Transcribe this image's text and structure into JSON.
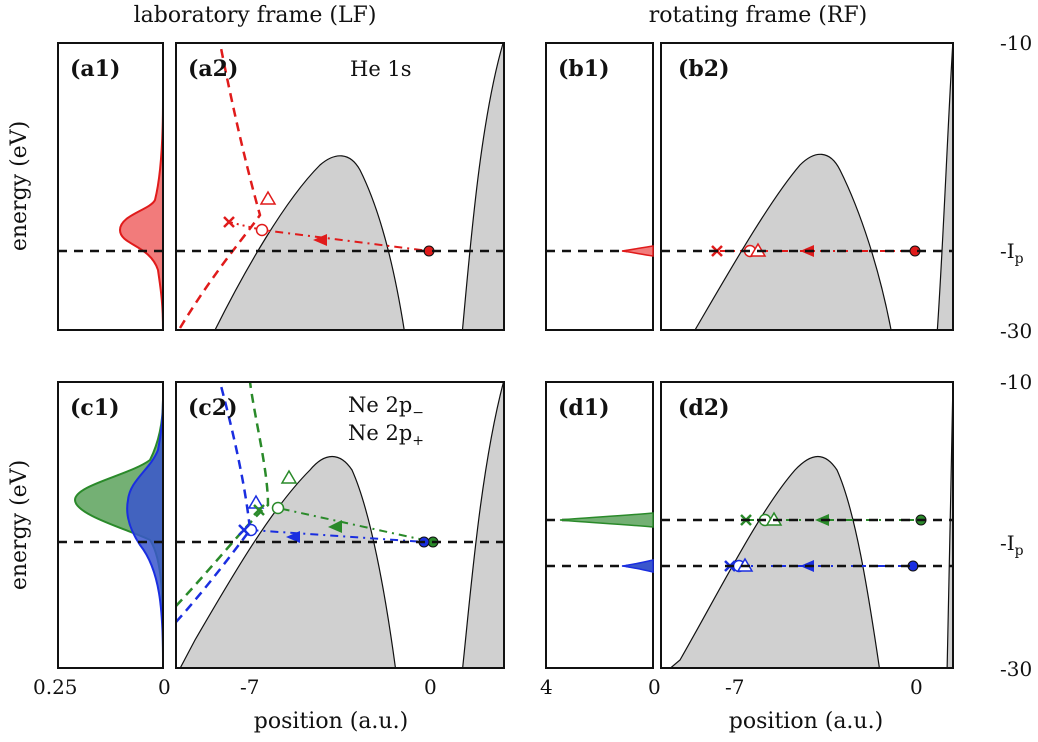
{
  "headers": {
    "lf": "laboratory frame (LF)",
    "rf": "rotating frame (RF)"
  },
  "axes": {
    "ylabel": "energy (eV)",
    "xlabel": "position (a.u.)",
    "y_tick_top": "-10",
    "y_tick_bottom": "-30",
    "y_tick_ip": "-I",
    "y_tick_ip_sub": "p",
    "x_ticks_pos": [
      "-7",
      "0"
    ],
    "x_ticks_dist_lf": [
      "0.25",
      "0"
    ],
    "x_ticks_dist_rf": [
      "4",
      "0"
    ]
  },
  "panel_tags": {
    "a1": "(a1)",
    "a2": "(a2)",
    "b1": "(b1)",
    "b2": "(b2)",
    "c1": "(c1)",
    "c2": "(c2)",
    "d1": "(d1)",
    "d2": "(d2)"
  },
  "legend": {
    "he": "He 1s",
    "ne_minus": "Ne 2p",
    "ne_minus_sub": "−",
    "ne_plus": "Ne 2p",
    "ne_plus_sub": "+"
  },
  "colors": {
    "he": "#e01b1b",
    "ne_minus": "#2a8a2a",
    "ne_plus": "#1a2ee0",
    "barrier": "#d0d0d0"
  },
  "chart_data": [
    {
      "panel": "a1",
      "type": "area",
      "x_axis": "probability",
      "xlim": [
        0.25,
        0
      ],
      "ylim": [
        -30,
        -10
      ],
      "series": [
        {
          "name": "He 1s",
          "peak_x": 0.1,
          "peak_y": -17.5,
          "width": 2.2
        }
      ]
    },
    {
      "panel": "a2",
      "type": "line",
      "xlim": [
        -9.5,
        2.5
      ],
      "ylim": [
        -30,
        -10
      ],
      "ip_y": -21,
      "trajectory": {
        "start": [
          0,
          -21
        ],
        "x_mark": [
          -8.6,
          -19.9
        ],
        "circle": [
          -6.5,
          -20.5
        ],
        "triangle": [
          -6.2,
          -18.3
        ]
      },
      "asymptote": {
        "from": [
          -9.3,
          -29.8
        ],
        "via": [
          -6.8,
          -20.6
        ],
        "to": [
          -7.8,
          -10.3
        ]
      }
    },
    {
      "panel": "b1",
      "type": "area",
      "xlim": [
        4,
        0
      ],
      "ylim": [
        -30,
        -10
      ],
      "series": [
        {
          "name": "He 1s",
          "peak_x": 2,
          "peak_y": -21
        }
      ]
    },
    {
      "panel": "b2",
      "type": "line",
      "xlim": [
        -9.5,
        2.5
      ],
      "ylim": [
        -30,
        -10
      ],
      "ip_y": -21,
      "trajectory": {
        "start": [
          0,
          -21
        ],
        "x_mark": [
          -8,
          -21
        ],
        "circle": [
          -6.4,
          -21
        ],
        "triangle": [
          -6.1,
          -21
        ]
      }
    },
    {
      "panel": "c1",
      "type": "area",
      "xlim": [
        0.25,
        0
      ],
      "ylim": [
        -30,
        -10
      ],
      "series": [
        {
          "name": "Ne 2p−",
          "peak_x": 0.2,
          "peak_y": -19.2,
          "width": 2.3
        },
        {
          "name": "Ne 2p+",
          "peak_x": 0.13,
          "peak_y": -20.2,
          "width": 3.0
        }
      ]
    },
    {
      "panel": "c2",
      "type": "line",
      "xlim": [
        -9.5,
        2.5
      ],
      "ylim": [
        -30,
        -10
      ],
      "ip_y": -21,
      "trajectories": [
        {
          "name": "Ne 2p−",
          "start": [
            0.2,
            -21
          ],
          "x_mark": [
            -7.2,
            -19.6
          ],
          "circle": [
            -6.2,
            -19.5
          ],
          "triangle": [
            -5.7,
            -17.9
          ]
        },
        {
          "name": "Ne 2p+",
          "start": [
            -0.2,
            -21
          ],
          "x_mark": [
            -7.5,
            -20.6
          ],
          "circle": [
            -7.2,
            -20.6
          ],
          "triangle": [
            -7.0,
            -19.3
          ]
        }
      ]
    },
    {
      "panel": "d1",
      "type": "area",
      "xlim": [
        4,
        0
      ],
      "ylim": [
        -30,
        -10
      ],
      "series": [
        {
          "name": "Ne 2p−",
          "peak_x": 3.7,
          "peak_y": -19
        },
        {
          "name": "Ne 2p+",
          "peak_x": 1.2,
          "peak_y": -22.7
        }
      ]
    },
    {
      "panel": "d2",
      "type": "line",
      "xlim": [
        -9.5,
        2.5
      ],
      "ylim": [
        -30,
        -10
      ],
      "ip_levels": [
        -19,
        -22.7
      ],
      "trajectories": [
        {
          "name": "Ne 2p−",
          "start": [
            0.2,
            -19
          ],
          "x_mark": [
            -8,
            -19
          ],
          "circle": [
            -6.3,
            -19
          ],
          "triangle": [
            -5.9,
            -19
          ]
        },
        {
          "name": "Ne 2p+",
          "start": [
            -0.2,
            -22.7
          ],
          "x_mark": [
            -8,
            -22.7
          ],
          "circle": [
            -6.9,
            -22.7
          ],
          "triangle": [
            -6.7,
            -22.7
          ]
        }
      ]
    }
  ]
}
